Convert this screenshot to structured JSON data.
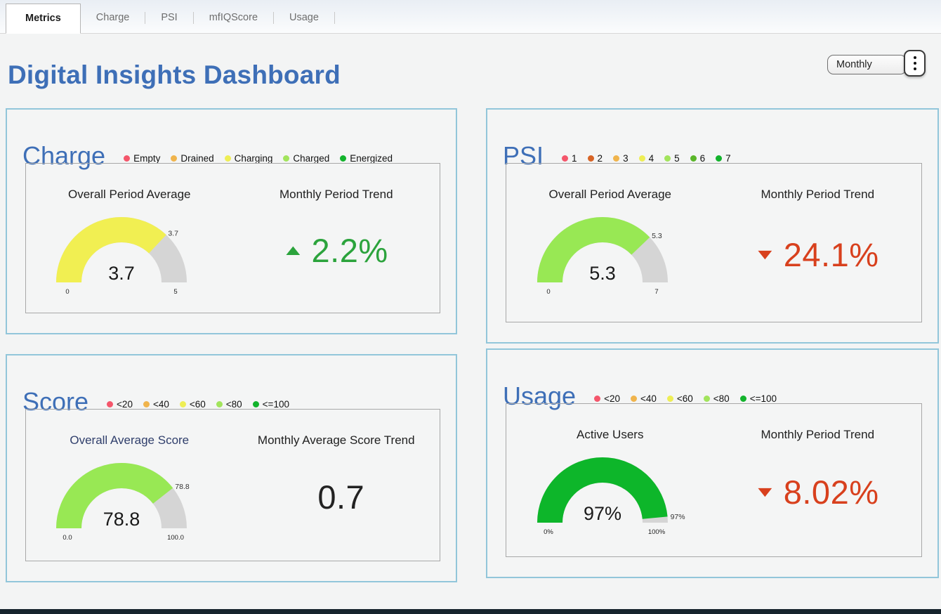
{
  "tabs": [
    {
      "label": "Metrics",
      "active": true
    },
    {
      "label": "Charge",
      "active": false
    },
    {
      "label": "PSI",
      "active": false
    },
    {
      "label": "mfIQScore",
      "active": false
    },
    {
      "label": "Usage",
      "active": false
    }
  ],
  "header": {
    "title": "Digital Insights Dashboard",
    "period_selector": {
      "value": "Monthly"
    }
  },
  "colors": {
    "accent_blue": "#3e6fb7",
    "panel_border": "#92c6da",
    "gauge_track": "#d5d5d5",
    "trend_up_green": "#2ba33c",
    "trend_down_red": "#d8401d"
  },
  "panels": {
    "charge": {
      "title": "Charge",
      "legend": [
        {
          "label": "Empty",
          "color": "#f4566b"
        },
        {
          "label": "Drained",
          "color": "#f0b44c"
        },
        {
          "label": "Charging",
          "color": "#eeee55"
        },
        {
          "label": "Charged",
          "color": "#a2e45c"
        },
        {
          "label": "Energized",
          "color": "#12b32c"
        }
      ],
      "gauge": {
        "title": "Overall Period Average",
        "value": 3.7,
        "min": 0,
        "max": 5,
        "display_value": "3.7",
        "min_label": "0",
        "max_label": "5",
        "tip_label": "3.7",
        "color": "#f1ef52"
      },
      "trend": {
        "title": "Monthly Period Trend",
        "arrow": "▲",
        "value": "2.2%",
        "color": "#2ba33c"
      }
    },
    "psi": {
      "title": "PSI",
      "legend": [
        {
          "label": "1",
          "color": "#f4566b"
        },
        {
          "label": "2",
          "color": "#d76426"
        },
        {
          "label": "3",
          "color": "#f0b44c"
        },
        {
          "label": "4",
          "color": "#eeee55"
        },
        {
          "label": "5",
          "color": "#a2e45c"
        },
        {
          "label": "6",
          "color": "#5ab629"
        },
        {
          "label": "7",
          "color": "#12b32c"
        }
      ],
      "gauge": {
        "title": "Overall Period Average",
        "value": 5.3,
        "min": 0,
        "max": 7,
        "display_value": "5.3",
        "min_label": "0",
        "max_label": "7",
        "tip_label": "5.3",
        "color": "#98e854"
      },
      "trend": {
        "title": "Monthly Period Trend",
        "arrow": "▼",
        "value": "24.1%",
        "color": "#d8401d"
      }
    },
    "score": {
      "title": "Score",
      "legend": [
        {
          "label": "<20",
          "color": "#f4566b"
        },
        {
          "label": "<40",
          "color": "#f0b44c"
        },
        {
          "label": "<60",
          "color": "#eeee55"
        },
        {
          "label": "<80",
          "color": "#a2e45c"
        },
        {
          "label": "<=100",
          "color": "#12b32c"
        }
      ],
      "gauge": {
        "title": "Overall Average Score",
        "value": 78.8,
        "min": 0,
        "max": 100,
        "display_value": "78.8",
        "min_label": "0.0",
        "max_label": "100.0",
        "tip_label": "78.8",
        "color": "#98e854"
      },
      "trend": {
        "title": "Monthly Average Score Trend",
        "arrow": "",
        "value": "0.7",
        "color": "#222222"
      }
    },
    "usage": {
      "title": "Usage",
      "legend": [
        {
          "label": "<20",
          "color": "#f4566b"
        },
        {
          "label": "<40",
          "color": "#f0b44c"
        },
        {
          "label": "<60",
          "color": "#eeee55"
        },
        {
          "label": "<80",
          "color": "#a2e45c"
        },
        {
          "label": "<=100",
          "color": "#12b32c"
        }
      ],
      "gauge": {
        "title": "Active Users",
        "value": 97,
        "min": 0,
        "max": 100,
        "display_value": "97%",
        "min_label": "0%",
        "max_label": "100%",
        "tip_label": "97%",
        "color": "#0db62a"
      },
      "trend": {
        "title": "Monthly Period Trend",
        "arrow": "▼",
        "value": "8.02%",
        "color": "#d8401d"
      }
    }
  }
}
